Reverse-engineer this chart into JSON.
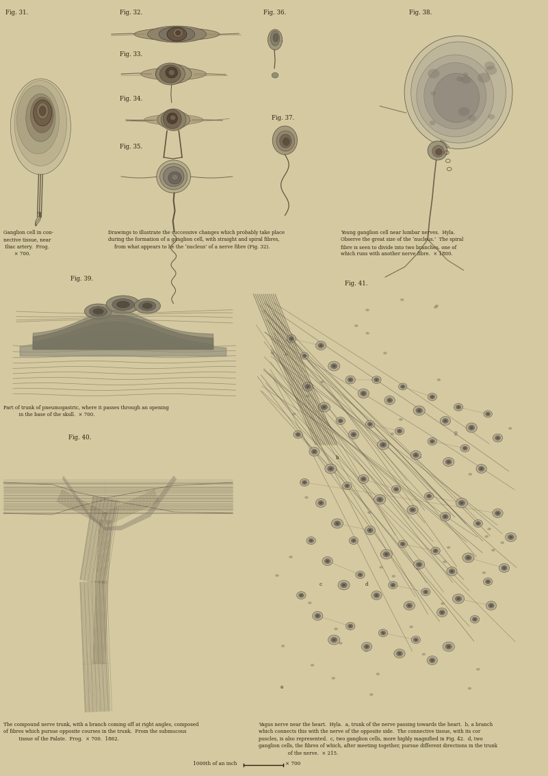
{
  "bg_color": "#d4c9a0",
  "text_color": "#2a2010",
  "fig_width": 8.01,
  "fig_height": 11.34,
  "dpi": 100,
  "captions": {
    "fig31_label": "Fig. 31.",
    "fig32_label": "Fig. 32.",
    "fig33_label": "Fig. 33.",
    "fig34_label": "Fig. 34.",
    "fig35_label": "Fig. 35.",
    "fig36_label": "Fig. 36.",
    "fig37_label": "Fig. 37.",
    "fig38_label": "Fig. 38.",
    "fig39_label": "Fig. 39.",
    "fig40_label": "Fig. 40.",
    "fig41_label": "Fig. 41.",
    "fig31_caption": "Ganglion cell in con-\nnective tissue, near\n Iliac artery.  Frog.\n       × 700.",
    "drawings_caption": "Drawings to illustrate the successive changes which probably take place\nduring the formation of a ganglion cell, with straight and spiral fibres,\n    from what appears to be the ‘nucleus’ of a nerve fibre (Fig. 32).",
    "young_ganglion_caption": "Young ganglion cell near lumbar nerves.  Hyla.\nObserve the great size of the ‘nucleus.’  The spiral\nfibre is seen to divide into two branches, one of\nwhich runs with another nerve fibre.  × 1800.",
    "fig39_caption": "Part of trunk of pneumogastric, where it passes through an opening\n          in the base of the skull.  × 700.",
    "fig40_caption": "The compound nerve trunk, with a branch coming off at right angles, composed\nof fibres which pursue opposite courses in the trunk.  From the submucous\n          tissue of the Palate.  Frog.  × 700.  1862.",
    "vagus_caption": "Vagus nerve near the heart.  Hyla.  a, trunk of the nerve passing towards the heart.  b, a branch\nwhich connects this with the nerve of the opposite side.  The connective tissue, with its cor\npuscles, is also represented.  c, two ganglion cells, more highly magnified in Fig. 42.  d, two\nganglion cells, the fibres of which, after meeting together, pursue different directions in the trunk\n                   of the nerve.  × 215.",
    "scale_text": "1000th of an inch",
    "scale_mag": "× 700"
  }
}
